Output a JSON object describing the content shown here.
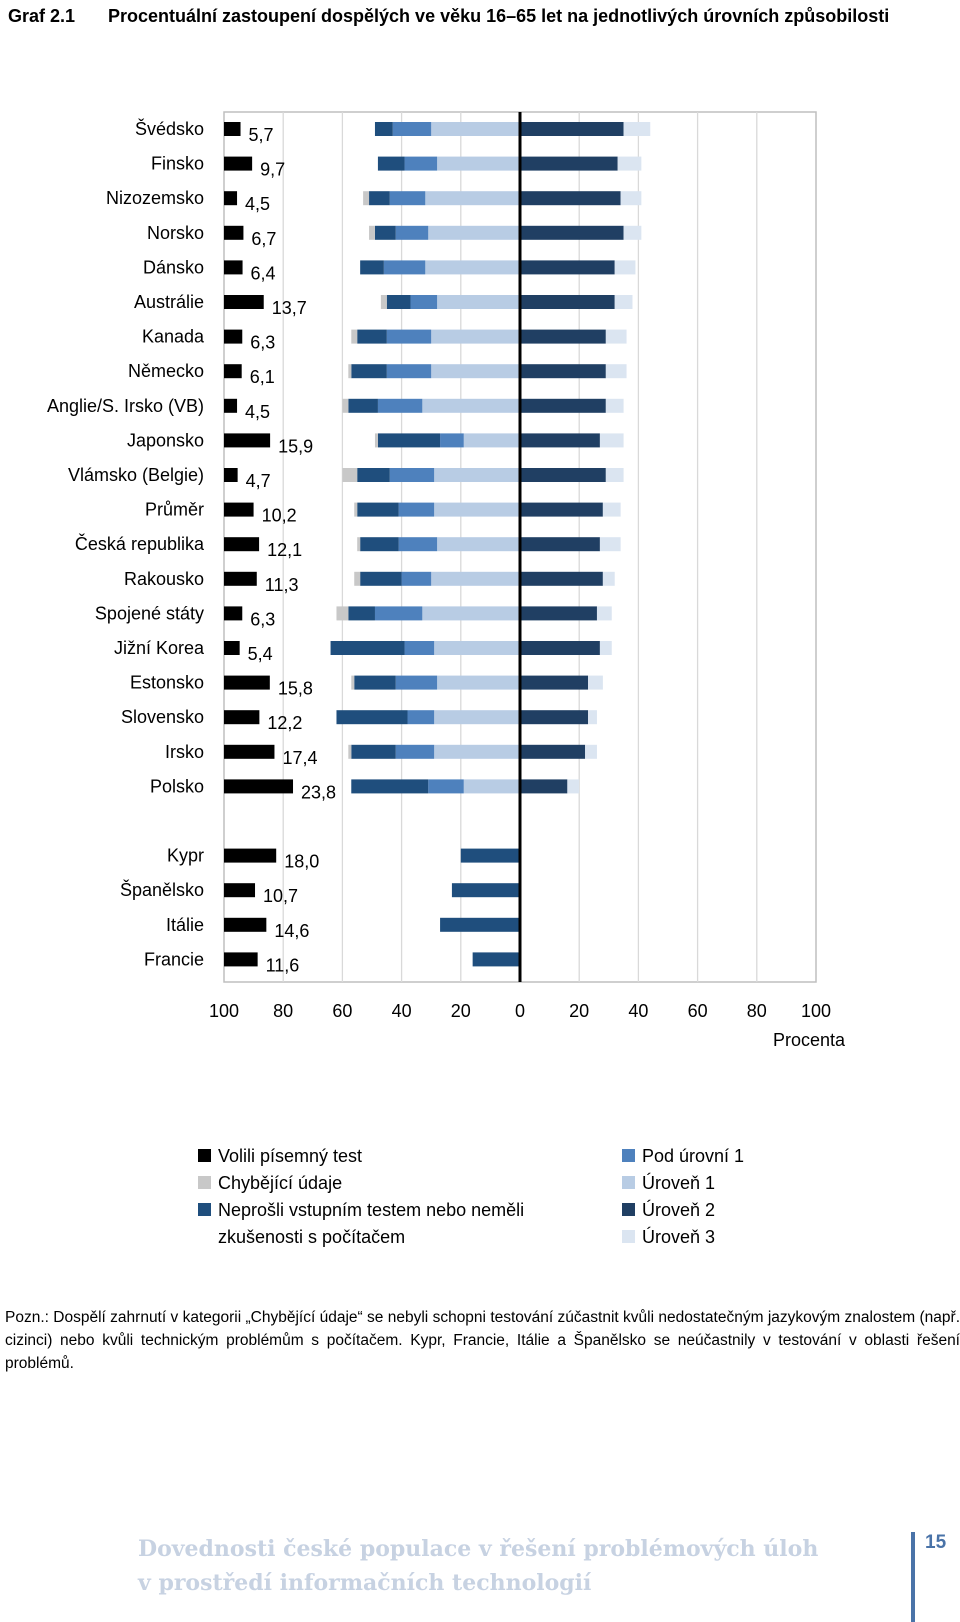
{
  "caption": {
    "number": "Graf 2.1",
    "text": "Procentuální zastoupení dospělých ve věku 16–65 let na jednotlivých úrovních způsobilosti"
  },
  "chart_data": {
    "type": "bar",
    "orientation": "horizontal",
    "x_ticks": [
      "100",
      "80",
      "60",
      "40",
      "20",
      "0",
      "20",
      "40",
      "60",
      "80",
      "100"
    ],
    "xlim": [
      -100,
      100
    ],
    "xlabel": "Procenta",
    "left_series": [
      "Chybějící údaje",
      "Neprošli vstupním testem nebo neměli zkušenosti s počítačem",
      "Pod úrovní 1",
      "Úroveň 1"
    ],
    "right_series": [
      "Úroveň 2",
      "Úroveň 3"
    ],
    "written_test_series": "Volili písemný test",
    "colors": {
      "written": "#000000",
      "missing": "#c8c8c8",
      "failed": "#1f4e7d",
      "below1": "#4e81bd",
      "level1": "#b8cce4",
      "level2": "#203f63",
      "level3": "#dbe5f1",
      "axis": "#000000",
      "grid": "#d9d9d9",
      "frame": "#bfbfbf"
    },
    "countries": [
      {
        "name": "Švédsko",
        "written": 5.7,
        "written_label": "5,7",
        "missing": 0.0,
        "failed": 6.0,
        "below1": 13.0,
        "level1": 30.0,
        "level2": 35.0,
        "level3": 9.0
      },
      {
        "name": "Finsko",
        "written": 9.7,
        "written_label": "9,7",
        "missing": 0.0,
        "failed": 9.0,
        "below1": 11.0,
        "level1": 28.0,
        "level2": 33.0,
        "level3": 8.0
      },
      {
        "name": "Nizozemsko",
        "written": 4.5,
        "written_label": "4,5",
        "missing": 2.0,
        "failed": 7.0,
        "below1": 12.0,
        "level1": 32.0,
        "level2": 34.0,
        "level3": 7.0
      },
      {
        "name": "Norsko",
        "written": 6.7,
        "written_label": "6,7",
        "missing": 2.0,
        "failed": 7.0,
        "below1": 11.0,
        "level1": 31.0,
        "level2": 35.0,
        "level3": 6.0
      },
      {
        "name": "Dánsko",
        "written": 6.4,
        "written_label": "6,4",
        "missing": 0.0,
        "failed": 8.0,
        "below1": 14.0,
        "level1": 32.0,
        "level2": 32.0,
        "level3": 7.0
      },
      {
        "name": "Austrálie",
        "written": 13.7,
        "written_label": "13,7",
        "missing": 2.0,
        "failed": 8.0,
        "below1": 9.0,
        "level1": 28.0,
        "level2": 32.0,
        "level3": 6.0
      },
      {
        "name": "Kanada",
        "written": 6.3,
        "written_label": "6,3",
        "missing": 2.0,
        "failed": 10.0,
        "below1": 15.0,
        "level1": 30.0,
        "level2": 29.0,
        "level3": 7.0
      },
      {
        "name": "Německo",
        "written": 6.1,
        "written_label": "6,1",
        "missing": 1.0,
        "failed": 12.0,
        "below1": 15.0,
        "level1": 30.0,
        "level2": 29.0,
        "level3": 7.0
      },
      {
        "name": "Anglie/S. Irsko (VB)",
        "written": 4.5,
        "written_label": "4,5",
        "missing": 2.0,
        "failed": 10.0,
        "below1": 15.0,
        "level1": 33.0,
        "level2": 29.0,
        "level3": 6.0
      },
      {
        "name": "Japonsko",
        "written": 15.9,
        "written_label": "15,9",
        "missing": 1.0,
        "failed": 21.0,
        "below1": 8.0,
        "level1": 19.0,
        "level2": 27.0,
        "level3": 8.0
      },
      {
        "name": "Vlámsko (Belgie)",
        "written": 4.7,
        "written_label": "4,7",
        "missing": 5.0,
        "failed": 11.0,
        "below1": 15.0,
        "level1": 29.0,
        "level2": 29.0,
        "level3": 6.0
      },
      {
        "name": "Průměr",
        "written": 10.2,
        "written_label": "10,2",
        "missing": 1.0,
        "failed": 14.0,
        "below1": 12.0,
        "level1": 29.0,
        "level2": 28.0,
        "level3": 6.0
      },
      {
        "name": "Česká republika",
        "written": 12.1,
        "written_label": "12,1",
        "missing": 1.0,
        "failed": 13.0,
        "below1": 13.0,
        "level1": 28.0,
        "level2": 27.0,
        "level3": 7.0
      },
      {
        "name": "Rakousko",
        "written": 11.3,
        "written_label": "11,3",
        "missing": 2.0,
        "failed": 14.0,
        "below1": 10.0,
        "level1": 30.0,
        "level2": 28.0,
        "level3": 4.0
      },
      {
        "name": "Spojené státy",
        "written": 6.3,
        "written_label": "6,3",
        "missing": 4.0,
        "failed": 9.0,
        "below1": 16.0,
        "level1": 33.0,
        "level2": 26.0,
        "level3": 5.0
      },
      {
        "name": "Jižní Korea",
        "written": 5.4,
        "written_label": "5,4",
        "missing": 0.0,
        "failed": 25.0,
        "below1": 10.0,
        "level1": 29.0,
        "level2": 27.0,
        "level3": 4.0
      },
      {
        "name": "Estonsko",
        "written": 15.8,
        "written_label": "15,8",
        "missing": 1.0,
        "failed": 14.0,
        "below1": 14.0,
        "level1": 28.0,
        "level2": 23.0,
        "level3": 5.0
      },
      {
        "name": "Slovensko",
        "written": 12.2,
        "written_label": "12,2",
        "missing": 0.0,
        "failed": 24.0,
        "below1": 9.0,
        "level1": 29.0,
        "level2": 23.0,
        "level3": 3.0
      },
      {
        "name": "Irsko",
        "written": 17.4,
        "written_label": "17,4",
        "missing": 1.0,
        "failed": 15.0,
        "below1": 13.0,
        "level1": 29.0,
        "level2": 22.0,
        "level3": 4.0
      },
      {
        "name": "Polsko",
        "written": 23.8,
        "written_label": "23,8",
        "missing": 0.0,
        "failed": 26.0,
        "below1": 12.0,
        "level1": 19.0,
        "level2": 16.0,
        "level3": 4.0
      }
    ],
    "countries_no_test": [
      {
        "name": "Kypr",
        "written": 18.0,
        "written_label": "18,0",
        "failed": 20.0
      },
      {
        "name": "Španělsko",
        "written": 10.7,
        "written_label": "10,7",
        "failed": 23.0
      },
      {
        "name": "Itálie",
        "written": 14.6,
        "written_label": "14,6",
        "failed": 27.0
      },
      {
        "name": "Francie",
        "written": 11.6,
        "written_label": "11,6",
        "failed": 16.0
      }
    ]
  },
  "legend": {
    "left": [
      {
        "label": "Volili písemný test",
        "color": "#000000"
      },
      {
        "label": "Chybějící údaje",
        "color": "#c8c8c8"
      },
      {
        "label": "Neprošli vstupním testem nebo neměli zkušenosti s počítačem",
        "color": "#1f4e7d"
      }
    ],
    "right": [
      {
        "label": "Pod úrovní 1",
        "color": "#4e81bd"
      },
      {
        "label": "Úroveň 1",
        "color": "#b8cce4"
      },
      {
        "label": "Úroveň 2",
        "color": "#203f63"
      },
      {
        "label": "Úroveň 3",
        "color": "#dbe5f1"
      }
    ]
  },
  "note": {
    "lead": "Pozn.",
    "text": ": Dospělí zahrnutí v kategorii „Chybějící údaje“ se nebyli schopni testování zúčastnit kvůli nedostatečným jazykovým znalostem (např. cizinci) nebo kvůli technickým problémům s počítačem. Kypr, Francie, Itálie a Španělsko se neúčastnily v testování v oblasti řešení problémů."
  },
  "footer": {
    "line1": "Dovednosti české populace v řešení problémových úloh",
    "line2": "v prostředí informačních technologií",
    "page": "15"
  }
}
